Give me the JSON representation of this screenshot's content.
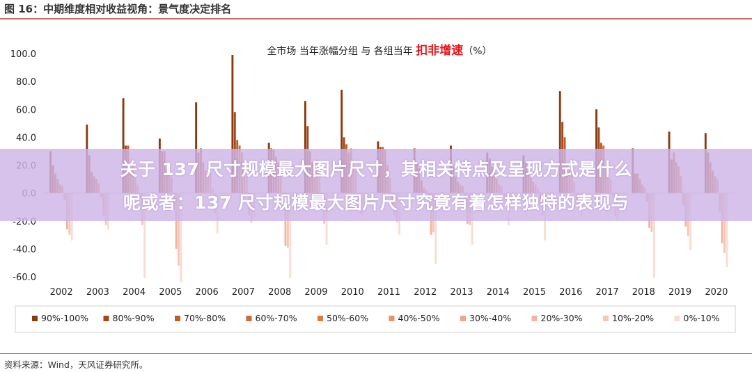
{
  "figure": {
    "title": "图 16：中期维度相对收益视角：景气度决定排名",
    "source": "资料来源：Wind，天风证券研究所。"
  },
  "overlay": {
    "line1": "关于 137 尺寸规模最大图片尺寸，其相关特点及呈现方式是什么",
    "line2": "呢或者：137 尺寸规模最大图片尺寸究竟有着怎样独特的表现与"
  },
  "chart_data": {
    "type": "bar",
    "title_parts": [
      "全市场  当年涨幅分组  与  各组当年 ",
      "扣非增速",
      "（%）"
    ],
    "title_highlight_color": "#e8141b",
    "ylim": [
      -60,
      100
    ],
    "yticks": [
      "100.0",
      "80.0",
      "60.0",
      "40.0",
      "20.0",
      "0.0",
      "-20.0",
      "-40.0",
      "-60.0"
    ],
    "ytick_values": [
      100,
      80,
      60,
      40,
      20,
      0,
      -20,
      -40,
      -60
    ],
    "categories": [
      "2002",
      "2003",
      "2004",
      "2005",
      "2006",
      "2007",
      "2008",
      "2009",
      "2010",
      "2011",
      "2012",
      "2013",
      "2014",
      "2015",
      "2016",
      "2017",
      "2018",
      "2019",
      "2020"
    ],
    "legend_position": "bottom",
    "grid": false,
    "series": [
      {
        "name": "90%-100%",
        "color": "#8c3a0f",
        "values": [
          30,
          49,
          68,
          39,
          65,
          99,
          36,
          66,
          74,
          37,
          32,
          34,
          29,
          27,
          73,
          60,
          32,
          44,
          43
        ]
      },
      {
        "name": "80%-90%",
        "color": "#a4481b",
        "values": [
          20,
          27,
          34,
          30,
          29,
          58,
          32,
          48,
          40,
          33,
          22,
          19,
          25,
          22,
          51,
          47,
          14,
          24,
          29
        ]
      },
      {
        "name": "70%-80%",
        "color": "#bd5c27",
        "values": [
          14,
          15,
          34,
          30,
          32,
          38,
          31,
          30,
          35,
          33,
          18,
          12,
          19,
          16,
          40,
          36,
          14,
          29,
          22
        ]
      },
      {
        "name": "60%-70%",
        "color": "#cd6b32",
        "values": [
          10,
          12,
          16,
          17,
          22,
          34,
          26,
          22,
          29,
          31,
          9,
          8,
          15,
          11,
          20,
          34,
          10,
          22,
          16
        ]
      },
      {
        "name": "50%-60%",
        "color": "#e07b3e",
        "values": [
          6,
          10,
          20,
          14,
          16,
          29,
          22,
          22,
          32,
          20,
          4,
          6,
          10,
          8,
          18,
          19,
          6,
          19,
          12
        ]
      },
      {
        "name": "40%-50%",
        "color": "#e8926a",
        "values": [
          5,
          7,
          11,
          11,
          12,
          17,
          12,
          24,
          20,
          11,
          2,
          5,
          6,
          6,
          13,
          14,
          4,
          12,
          10
        ]
      },
      {
        "name": "30%-40%",
        "color": "#eea58a",
        "values": [
          -5,
          -3,
          6,
          -12,
          14,
          12,
          -9,
          14,
          16,
          -9,
          -8,
          -5,
          5,
          3,
          8,
          10,
          -6,
          -9,
          -13
        ]
      },
      {
        "name": "20%-30%",
        "color": "#f2b5a3",
        "values": [
          -26,
          -16,
          -4,
          -40,
          3,
          -16,
          -38,
          -8,
          -10,
          -16,
          -30,
          -22,
          -3,
          -8,
          -7,
          -2,
          -25,
          -24,
          -36
        ]
      },
      {
        "name": "10%-20%",
        "color": "#f6c6b8",
        "values": [
          -30,
          -23,
          -23,
          -52,
          -15,
          -21,
          -39,
          -22,
          -15,
          -21,
          -28,
          -23,
          -10,
          -16,
          -11,
          -17,
          -28,
          -31,
          -43
        ]
      },
      {
        "name": "0%-10%",
        "color": "#f9dcd2",
        "values": [
          -34,
          -26,
          -61,
          -64,
          -29,
          -17,
          -61,
          -37,
          -16,
          -30,
          -51,
          -37,
          -23,
          -34,
          -17,
          -20,
          -61,
          -41,
          -53
        ]
      }
    ]
  }
}
